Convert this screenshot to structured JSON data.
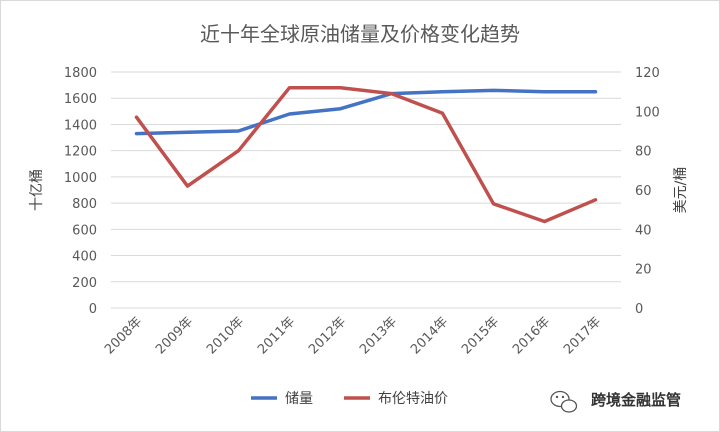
{
  "chart_data": {
    "type": "line",
    "title": "近十年全球原油储量及价格变化趋势",
    "categories": [
      "2008年",
      "2009年",
      "2010年",
      "2011年",
      "2012年",
      "2013年",
      "2014年",
      "2015年",
      "2016年",
      "2017年"
    ],
    "series": [
      {
        "name": "储量",
        "axis": "left",
        "color": "#4472c4",
        "values": [
          1330,
          1340,
          1350,
          1480,
          1520,
          1635,
          1650,
          1660,
          1650,
          1650
        ]
      },
      {
        "name": "布伦特油价",
        "axis": "right",
        "color": "#c0504d",
        "values": [
          97,
          62,
          80,
          112,
          112,
          109,
          99,
          53,
          44,
          55
        ]
      }
    ],
    "y_left": {
      "label": "十亿桶",
      "min": 0,
      "max": 1800,
      "step": 200
    },
    "y_right": {
      "label": "美元/桶",
      "min": 0,
      "max": 120,
      "step": 20
    },
    "grid": true,
    "legend": "bottom"
  },
  "watermark": {
    "text": "跨境金融监管",
    "icon": "wechat-icon"
  }
}
